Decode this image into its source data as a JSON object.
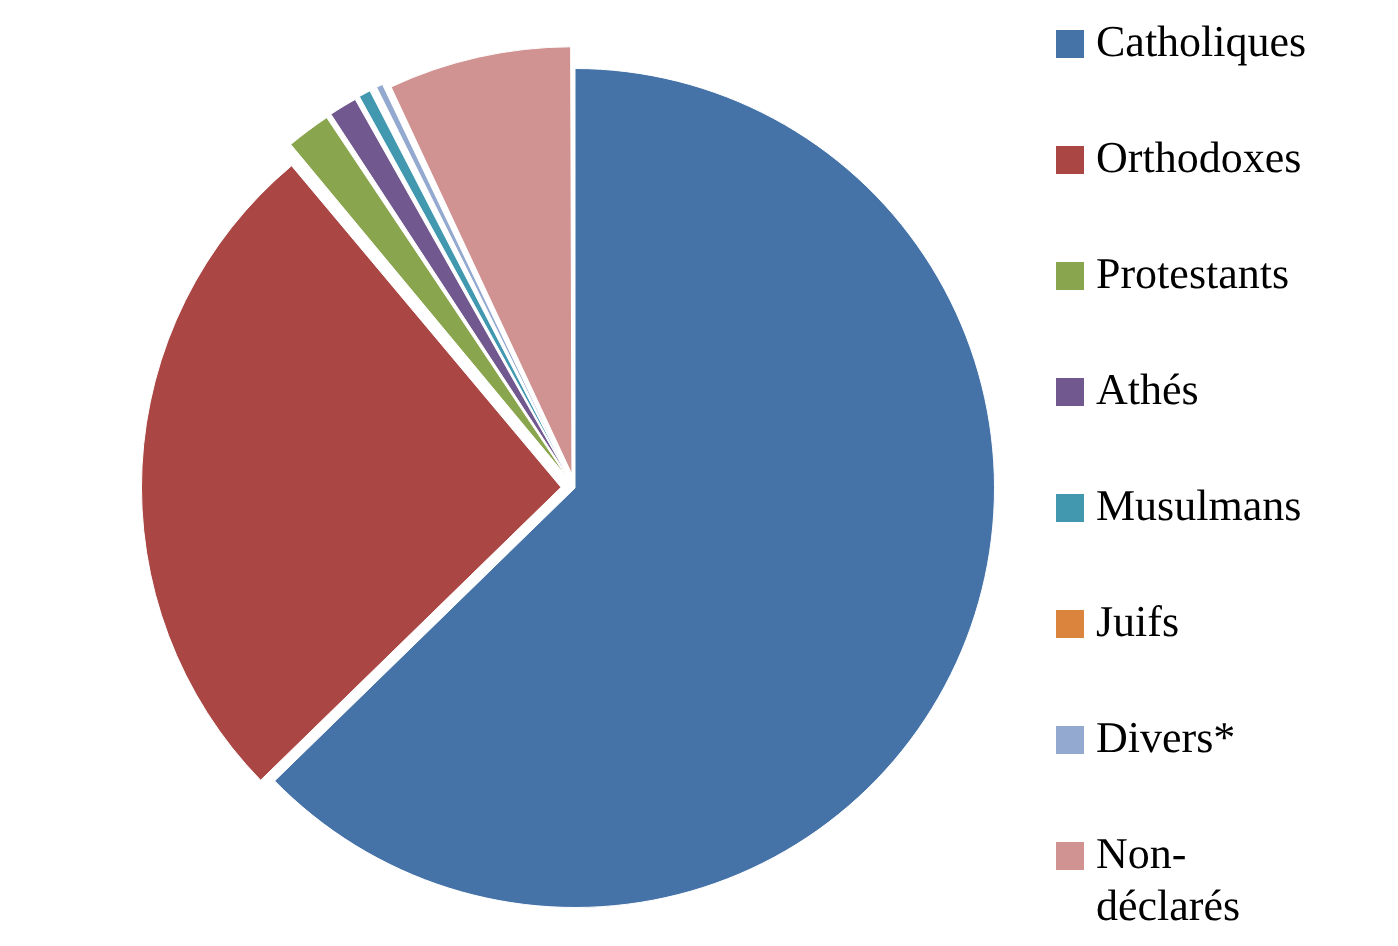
{
  "chart_data": {
    "type": "pie",
    "categories": [
      "Catholiques",
      "Orthodoxes",
      "Protestants",
      "Athés",
      "Musulmans",
      "Juifs",
      "Divers*",
      "Non-déclarés"
    ],
    "values": [
      62.7,
      26.2,
      1.8,
      1.2,
      0.6,
      0.1,
      0.4,
      7.0
    ],
    "colors": [
      "#4572a7",
      "#aa4643",
      "#89a54e",
      "#71588f",
      "#4198af",
      "#db843d",
      "#93a9cf",
      "#d19392"
    ],
    "legend": "right"
  }
}
